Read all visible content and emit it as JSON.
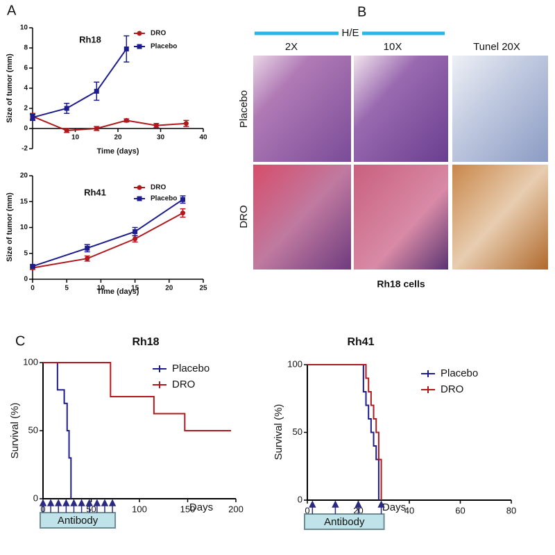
{
  "panel_labels": [
    "A",
    "C"
  ],
  "panel_b": {
    "label": "B",
    "stain": "H/E",
    "columns": [
      "2X",
      "10X",
      "Tunel 20X"
    ],
    "rows": [
      "Placebo",
      "DRO"
    ],
    "caption": "Rh18 cells"
  },
  "chart_data": [
    {
      "type": "line",
      "title": "Rh18",
      "xlabel": "Time (days)",
      "ylabel": "Size of tumor (mm)",
      "xlim": [
        0,
        40
      ],
      "xticks": [
        10,
        20,
        30,
        40
      ],
      "ylim": [
        -2,
        10
      ],
      "yticks": [
        -2,
        0,
        2,
        4,
        6,
        8,
        10
      ],
      "series": [
        {
          "name": "DRO",
          "color": "#b0181c",
          "marker": "circle",
          "x": [
            0,
            8,
            15,
            22,
            29,
            36
          ],
          "values": [
            1.2,
            -0.2,
            0.0,
            0.8,
            0.3,
            0.5
          ],
          "errors": [
            0.3,
            0.2,
            0.2,
            0.15,
            0.2,
            0.3
          ]
        },
        {
          "name": "Placebo",
          "color": "#1c1c8c",
          "marker": "square",
          "x": [
            0,
            8,
            15,
            22
          ],
          "values": [
            1.1,
            2.0,
            3.7,
            7.9
          ],
          "errors": [
            0.3,
            0.5,
            0.9,
            1.3
          ]
        }
      ]
    },
    {
      "type": "line",
      "title": "Rh41",
      "xlabel": "Time (days)",
      "ylabel": "Size of tumor (mm)",
      "xlim": [
        0,
        25
      ],
      "xticks": [
        0,
        5,
        10,
        15,
        20,
        25
      ],
      "ylim": [
        0,
        20
      ],
      "yticks": [
        0,
        5,
        10,
        15,
        20
      ],
      "series": [
        {
          "name": "DRO",
          "color": "#b0181c",
          "marker": "circle",
          "x": [
            0,
            8,
            15,
            22
          ],
          "values": [
            2.2,
            4.0,
            7.8,
            12.8
          ],
          "errors": [
            0.3,
            0.5,
            0.6,
            0.8
          ]
        },
        {
          "name": "Placebo",
          "color": "#1c1c8c",
          "marker": "square",
          "x": [
            0,
            8,
            15,
            22
          ],
          "values": [
            2.5,
            6.0,
            9.2,
            15.4
          ],
          "errors": [
            0.3,
            0.7,
            0.8,
            0.7
          ]
        }
      ]
    },
    {
      "type": "step",
      "title": "Rh18",
      "xlabel": "Days",
      "ylabel": "Survival (%)",
      "xlim": [
        0,
        200
      ],
      "xticks": [
        0,
        50,
        100,
        150,
        200
      ],
      "ylim": [
        0,
        100
      ],
      "yticks": [
        0,
        50,
        100
      ],
      "dosing_label": "Antibody",
      "dosing_days": [
        0,
        8,
        16,
        24,
        32,
        40,
        48,
        56,
        64,
        72
      ],
      "series": [
        {
          "name": "Placebo",
          "color": "#1c1c8c",
          "x": [
            0,
            15,
            22,
            25,
            27,
            29
          ],
          "values": [
            100,
            80,
            70,
            50,
            30,
            0
          ]
        },
        {
          "name": "DRO",
          "color": "#b0181c",
          "x": [
            0,
            70,
            115,
            147,
            195
          ],
          "values": [
            100,
            75,
            62.5,
            50,
            50
          ]
        }
      ]
    },
    {
      "type": "step",
      "title": "Rh41",
      "xlabel": "Days",
      "ylabel": "Survival (%)",
      "xlim": [
        0,
        80
      ],
      "xticks": [
        0,
        20,
        40,
        60,
        80
      ],
      "ylim": [
        0,
        100
      ],
      "yticks": [
        0,
        50,
        100
      ],
      "dosing_label": "Antibody",
      "dosing_days": [
        2,
        11,
        20,
        29
      ],
      "series": [
        {
          "name": "Placebo",
          "color": "#1c1c8c",
          "x": [
            0,
            22,
            23,
            24,
            25,
            26,
            27,
            28
          ],
          "values": [
            100,
            80,
            70,
            60,
            50,
            40,
            30,
            0
          ]
        },
        {
          "name": "DRO",
          "color": "#b0181c",
          "x": [
            0,
            23,
            24,
            25,
            26,
            27,
            28,
            29
          ],
          "values": [
            100,
            90,
            80,
            70,
            60,
            50,
            30,
            0
          ]
        }
      ]
    }
  ]
}
